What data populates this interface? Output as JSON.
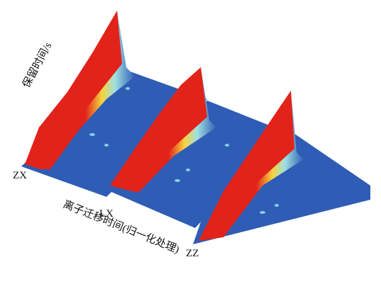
{
  "axis_labels": {
    "retention_time": "保留时间/s",
    "drift_time": "离子迁移时间(归一化处理)"
  },
  "samples": [
    "ZX",
    "LX",
    "ZZ"
  ]
}
